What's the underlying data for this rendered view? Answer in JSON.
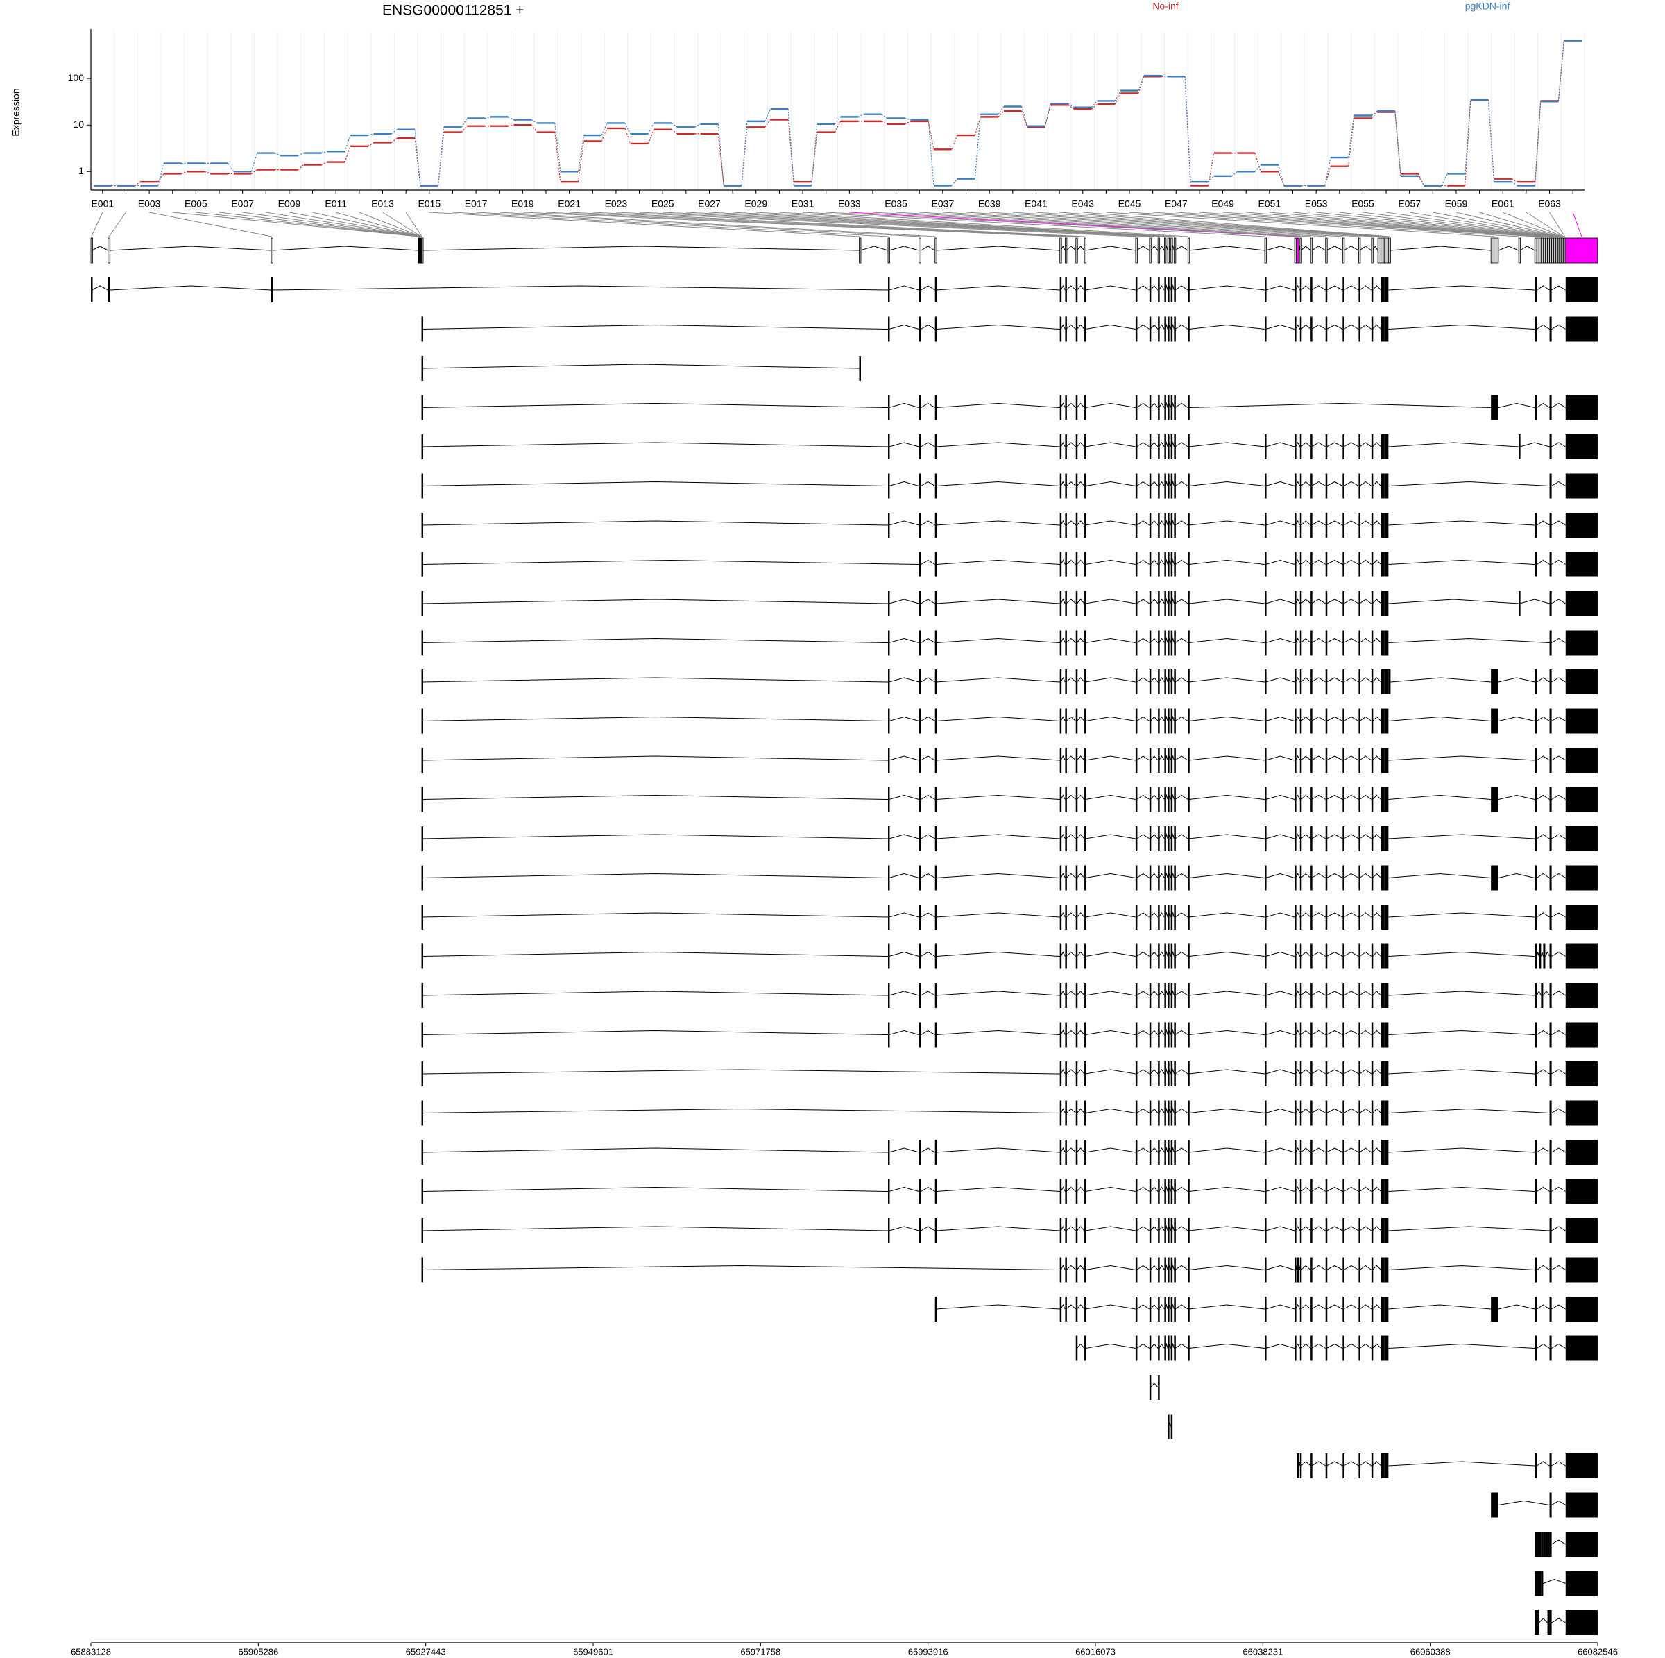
{
  "chart_data": {
    "type": "dexseq",
    "title": "ENSG00000112851 +",
    "ylabel": "Expression",
    "ylog": true,
    "ylim": [
      0.4,
      1000
    ],
    "yticks": [
      1,
      10,
      100
    ],
    "categories": [
      "E001",
      null,
      "E003",
      null,
      "E005",
      null,
      "E007",
      null,
      "E009",
      null,
      "E011",
      null,
      "E013",
      null,
      "E015",
      null,
      "E017",
      null,
      "E019",
      null,
      "E021",
      null,
      "E023",
      null,
      "E025",
      null,
      "E027",
      null,
      "E029",
      null,
      "E031",
      null,
      "E033",
      null,
      "E035",
      null,
      "E037",
      null,
      "E039",
      null,
      "E041",
      null,
      "E043",
      null,
      "E045",
      null,
      "E047",
      null,
      "E049",
      null,
      "E051",
      null,
      "E053",
      null,
      "E055",
      null,
      "E057",
      null,
      "E059",
      null,
      "E061",
      null,
      "E063",
      null
    ],
    "series": [
      {
        "name": "No-inf",
        "color": "#cc2a2a",
        "values": [
          0.5,
          0.5,
          0.6,
          0.9,
          1.0,
          0.9,
          0.9,
          1.1,
          1.1,
          1.4,
          1.6,
          3.5,
          4.2,
          5.2,
          0.5,
          7,
          9.5,
          9.5,
          10,
          7,
          0.6,
          4.5,
          8.5,
          4,
          8,
          6.5,
          6.5,
          0.5,
          9,
          13,
          0.6,
          7,
          12,
          12,
          10.5,
          12,
          3,
          6,
          15,
          20,
          9,
          27,
          22,
          28,
          48,
          110,
          110,
          0.5,
          2.5,
          2.5,
          1.0,
          0.5,
          0.5,
          1.3,
          14,
          19,
          0.9,
          0.5,
          0.5,
          35,
          0.7,
          0.6,
          33,
          650
        ]
      },
      {
        "name": "pgKDN-inf",
        "color": "#3a7fc1",
        "values": [
          0.5,
          0.5,
          0.5,
          1.5,
          1.5,
          1.5,
          1.0,
          2.5,
          2.2,
          2.5,
          2.7,
          6,
          6.5,
          8,
          0.5,
          9,
          14,
          15,
          13,
          11,
          1.0,
          6,
          11,
          6.5,
          11,
          9,
          10.5,
          0.5,
          12,
          22,
          0.5,
          10.5,
          15,
          17,
          14,
          13,
          0.5,
          0.7,
          17,
          25,
          9.5,
          29,
          24,
          33,
          55,
          115,
          110,
          0.6,
          0.8,
          1.0,
          1.4,
          0.5,
          0.5,
          2.0,
          16,
          20,
          0.8,
          0.5,
          0.9,
          35,
          0.6,
          0.5,
          32,
          650
        ]
      }
    ],
    "xlim": [
      65883128,
      66082546
    ],
    "xticks": [
      65883128,
      65905286,
      65927443,
      65949601,
      65971758,
      65993916,
      66016073,
      66038231,
      66060388,
      66082546
    ],
    "exon_color": "#cccccc",
    "transcript_color": "#000000",
    "highlight": [
      32,
      63
    ],
    "highlight_color": "#ff00ff",
    "exons": [
      [
        65883130,
        65883270
      ],
      [
        65885390,
        65885670
      ],
      [
        65907000,
        65907140
      ],
      [
        65926480,
        65926520
      ],
      [
        65926520,
        65926560
      ],
      [
        65926560,
        65926600
      ],
      [
        65926600,
        65926640
      ],
      [
        65926640,
        65926680
      ],
      [
        65926680,
        65926720
      ],
      [
        65926720,
        65926760
      ],
      [
        65926760,
        65926800
      ],
      [
        65926800,
        65926840
      ],
      [
        65926840,
        65926880
      ],
      [
        65926880,
        65927000
      ],
      [
        65984810,
        65984950
      ],
      [
        65988620,
        65988760
      ],
      [
        65992720,
        65992990
      ],
      [
        65994840,
        65994980
      ],
      [
        66011360,
        66011500
      ],
      [
        66012070,
        66012210
      ],
      [
        66013480,
        66013620
      ],
      [
        66014610,
        66014750
      ],
      [
        66021390,
        66021530
      ],
      [
        66023220,
        66023360
      ],
      [
        66024350,
        66024490
      ],
      [
        66025200,
        66025340
      ],
      [
        66025630,
        66025770
      ],
      [
        66026050,
        66026190
      ],
      [
        66026480,
        66026620
      ],
      [
        66028310,
        66028450
      ],
      [
        66038480,
        66038620
      ],
      [
        66042430,
        66042570
      ],
      [
        66042720,
        66043000
      ],
      [
        66043140,
        66043280
      ],
      [
        66044550,
        66044690
      ],
      [
        66046530,
        66046670
      ],
      [
        66048790,
        66048930
      ],
      [
        66050910,
        66051050
      ],
      [
        66052600,
        66052740
      ],
      [
        66053450,
        66053870
      ],
      [
        66053870,
        66054290
      ],
      [
        66054290,
        66054850
      ],
      [
        66054850,
        66055130
      ],
      [
        66068420,
        66069410
      ],
      [
        66072090,
        66072230
      ],
      [
        66074210,
        66074490
      ],
      [
        66074490,
        66074770
      ],
      [
        66074770,
        66075050
      ],
      [
        66075050,
        66075330
      ],
      [
        66075330,
        66075610
      ],
      [
        66075610,
        66075890
      ],
      [
        66075890,
        66076170
      ],
      [
        66076170,
        66076450
      ],
      [
        66076450,
        66076730
      ],
      [
        66076730,
        66077010
      ],
      [
        66077010,
        66077290
      ],
      [
        66077290,
        66077430
      ],
      [
        66077430,
        66077570
      ],
      [
        66077570,
        66077710
      ],
      [
        66077710,
        66077850
      ],
      [
        66077850,
        66077990
      ],
      [
        66077990,
        66078130
      ],
      [
        66078130,
        66078270
      ],
      [
        66078300,
        66082540
      ]
    ],
    "transcripts": [
      [
        0,
        1,
        2,
        15,
        16,
        17,
        18,
        19,
        20,
        21,
        22,
        23,
        24,
        25,
        26,
        27,
        28,
        29,
        30,
        31,
        33,
        34,
        35,
        36,
        37,
        38,
        40,
        41,
        45,
        52,
        63
      ],
      [
        13,
        15,
        16,
        17,
        18,
        19,
        20,
        21,
        22,
        23,
        24,
        25,
        26,
        27,
        28,
        29,
        30,
        31,
        33,
        34,
        35,
        36,
        37,
        38,
        40,
        41,
        45,
        52,
        63
      ],
      [
        13,
        14
      ],
      [
        13,
        15,
        16,
        17,
        18,
        19,
        20,
        21,
        22,
        23,
        24,
        25,
        26,
        27,
        28,
        29,
        43,
        45,
        52,
        63
      ],
      [
        13,
        15,
        16,
        17,
        18,
        19,
        20,
        21,
        22,
        23,
        24,
        25,
        26,
        27,
        28,
        29,
        30,
        31,
        33,
        34,
        35,
        36,
        37,
        38,
        40,
        41,
        44,
        52,
        63
      ],
      [
        13,
        15,
        16,
        17,
        18,
        19,
        20,
        21,
        22,
        23,
        24,
        25,
        26,
        27,
        28,
        29,
        30,
        31,
        33,
        34,
        35,
        36,
        37,
        38,
        40,
        41,
        52,
        63
      ],
      [
        13,
        15,
        16,
        17,
        18,
        19,
        20,
        21,
        22,
        23,
        24,
        25,
        26,
        27,
        28,
        29,
        30,
        31,
        33,
        34,
        35,
        36,
        37,
        38,
        40,
        41,
        45,
        52,
        63
      ],
      [
        13,
        16,
        17,
        18,
        19,
        20,
        21,
        22,
        23,
        24,
        25,
        26,
        27,
        28,
        29,
        30,
        31,
        33,
        34,
        35,
        36,
        37,
        38,
        40,
        41,
        45,
        52,
        63
      ],
      [
        13,
        15,
        16,
        17,
        18,
        19,
        20,
        21,
        22,
        23,
        24,
        25,
        26,
        27,
        28,
        29,
        30,
        31,
        33,
        34,
        35,
        36,
        37,
        38,
        40,
        41,
        44,
        52,
        63
      ],
      [
        13,
        15,
        16,
        17,
        18,
        19,
        20,
        21,
        22,
        23,
        24,
        25,
        26,
        27,
        28,
        29,
        30,
        31,
        33,
        34,
        35,
        36,
        37,
        38,
        40,
        41,
        52,
        63
      ],
      [
        13,
        15,
        16,
        17,
        18,
        19,
        20,
        21,
        22,
        23,
        24,
        25,
        26,
        27,
        28,
        29,
        30,
        31,
        33,
        34,
        35,
        36,
        37,
        38,
        40,
        41,
        42,
        43,
        45,
        52,
        63
      ],
      [
        13,
        15,
        16,
        17,
        18,
        19,
        20,
        21,
        22,
        23,
        24,
        25,
        26,
        27,
        28,
        29,
        30,
        31,
        33,
        34,
        35,
        36,
        37,
        38,
        40,
        41,
        43,
        45,
        52,
        63
      ],
      [
        13,
        15,
        16,
        17,
        18,
        19,
        20,
        21,
        22,
        23,
        24,
        25,
        26,
        27,
        28,
        29,
        30,
        31,
        33,
        34,
        35,
        36,
        37,
        38,
        40,
        41,
        45,
        52,
        63
      ],
      [
        13,
        15,
        16,
        17,
        18,
        19,
        20,
        21,
        22,
        23,
        24,
        25,
        26,
        27,
        28,
        29,
        30,
        31,
        33,
        34,
        35,
        36,
        37,
        38,
        40,
        41,
        43,
        45,
        52,
        63
      ],
      [
        13,
        15,
        16,
        17,
        18,
        19,
        20,
        21,
        22,
        23,
        24,
        25,
        26,
        27,
        28,
        29,
        30,
        31,
        33,
        34,
        35,
        36,
        37,
        38,
        40,
        41,
        45,
        52,
        63
      ],
      [
        13,
        15,
        16,
        17,
        18,
        19,
        20,
        21,
        22,
        23,
        24,
        25,
        26,
        27,
        28,
        29,
        30,
        31,
        33,
        34,
        35,
        36,
        37,
        38,
        40,
        41,
        43,
        45,
        52,
        63
      ],
      [
        13,
        15,
        16,
        17,
        18,
        19,
        20,
        21,
        22,
        23,
        24,
        25,
        26,
        27,
        28,
        29,
        30,
        31,
        33,
        34,
        35,
        36,
        37,
        38,
        40,
        41,
        45,
        52,
        63
      ],
      [
        13,
        15,
        16,
        17,
        18,
        19,
        20,
        21,
        22,
        23,
        24,
        25,
        26,
        27,
        28,
        29,
        30,
        31,
        33,
        34,
        35,
        36,
        37,
        38,
        40,
        41,
        45,
        47,
        49,
        52,
        63
      ],
      [
        13,
        15,
        16,
        17,
        18,
        19,
        20,
        21,
        22,
        23,
        24,
        25,
        26,
        27,
        28,
        29,
        30,
        31,
        33,
        34,
        35,
        36,
        37,
        38,
        40,
        41,
        45,
        48,
        52,
        63
      ],
      [
        13,
        15,
        16,
        17,
        18,
        19,
        20,
        21,
        22,
        23,
        24,
        25,
        26,
        27,
        28,
        29,
        30,
        31,
        33,
        34,
        35,
        36,
        37,
        38,
        40,
        41,
        45,
        52,
        63
      ],
      [
        13,
        18,
        19,
        20,
        21,
        22,
        23,
        24,
        25,
        26,
        27,
        28,
        29,
        30,
        31,
        33,
        34,
        35,
        36,
        37,
        38,
        40,
        41,
        45,
        52,
        63
      ],
      [
        13,
        18,
        19,
        20,
        21,
        22,
        23,
        24,
        25,
        26,
        27,
        28,
        29,
        30,
        31,
        33,
        34,
        35,
        36,
        37,
        38,
        40,
        41,
        52,
        63
      ],
      [
        13,
        15,
        16,
        17,
        18,
        19,
        20,
        21,
        22,
        23,
        24,
        25,
        26,
        27,
        28,
        29,
        30,
        31,
        33,
        34,
        35,
        36,
        37,
        38,
        40,
        41,
        45,
        52,
        63
      ],
      [
        13,
        15,
        16,
        17,
        18,
        19,
        20,
        21,
        22,
        23,
        24,
        25,
        26,
        27,
        28,
        29,
        30,
        31,
        33,
        34,
        35,
        36,
        37,
        38,
        40,
        41,
        45,
        52,
        63
      ],
      [
        13,
        15,
        16,
        17,
        18,
        19,
        20,
        21,
        22,
        23,
        24,
        25,
        26,
        27,
        28,
        29,
        30,
        31,
        33,
        34,
        35,
        36,
        37,
        38,
        40,
        41,
        52,
        63
      ],
      [
        13,
        18,
        19,
        20,
        21,
        22,
        23,
        24,
        25,
        26,
        27,
        28,
        29,
        30,
        31,
        32,
        33,
        34,
        35,
        36,
        37,
        38,
        40,
        41,
        45,
        52,
        63
      ],
      [
        17,
        18,
        19,
        20,
        21,
        22,
        23,
        24,
        25,
        26,
        27,
        28,
        29,
        30,
        31,
        33,
        34,
        35,
        36,
        37,
        38,
        40,
        41,
        43,
        45,
        52,
        63
      ],
      [
        20,
        21,
        22,
        23,
        24,
        25,
        26,
        27,
        28,
        29,
        30,
        31,
        33,
        34,
        35,
        36,
        37,
        38,
        40,
        41,
        45,
        52,
        63
      ],
      [
        23,
        24
      ],
      [
        26,
        27
      ],
      [
        32,
        33,
        34,
        35,
        36,
        37,
        38,
        40,
        41,
        45,
        52,
        63
      ],
      [
        43,
        52,
        63
      ],
      [
        45,
        46,
        47,
        48,
        49,
        50,
        51,
        52,
        63
      ],
      [
        45,
        46,
        47,
        48,
        63
      ],
      [
        45,
        46,
        51,
        52,
        63
      ]
    ]
  }
}
